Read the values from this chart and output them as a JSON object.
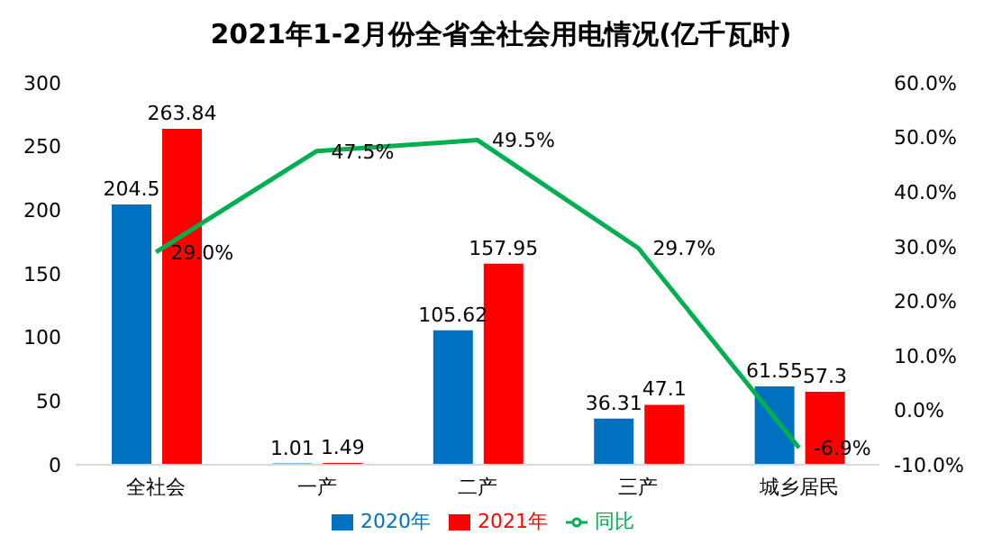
{
  "chart_data": {
    "type": "bar",
    "title": "2021年1-2月份全省全社会用电情况(亿千瓦时)",
    "categories": [
      "全社会",
      "一产",
      "二产",
      "三产",
      "城乡居民"
    ],
    "series": [
      {
        "name": "2020年",
        "color": "#0070c0",
        "values": [
          204.5,
          1.01,
          105.62,
          36.31,
          61.55
        ],
        "value_labels": [
          "204.5",
          "1.01",
          "105.62",
          "36.31",
          "61.55"
        ]
      },
      {
        "name": "2021年",
        "color": "#ff0000",
        "values": [
          263.84,
          1.49,
          157.95,
          47.1,
          57.3
        ],
        "value_labels": [
          "263.84",
          "1.49",
          "157.95",
          "47.1",
          "57.3"
        ]
      },
      {
        "name": "同比",
        "type": "line",
        "axis": "y2",
        "color": "#00b050",
        "marker": "none",
        "values": [
          29.0,
          47.5,
          49.5,
          29.7,
          -6.9
        ],
        "value_labels": [
          "29.0%",
          "47.5%",
          "49.5%",
          "29.7%",
          "-6.9%"
        ]
      }
    ],
    "ylim": [
      0,
      300
    ],
    "yticks": [
      0,
      50,
      100,
      150,
      200,
      250,
      300
    ],
    "y2lim": [
      -10,
      60
    ],
    "y2ticks": [
      {
        "value": -10,
        "label": "-10.0%"
      },
      {
        "value": 0,
        "label": "0.0%"
      },
      {
        "value": 10,
        "label": "10.0%"
      },
      {
        "value": 20,
        "label": "20.0%"
      },
      {
        "value": 30,
        "label": "30.0%"
      },
      {
        "value": 40,
        "label": "40.0%"
      },
      {
        "value": 50,
        "label": "50.0%"
      },
      {
        "value": 60,
        "label": "60.0%"
      }
    ],
    "grid": false,
    "legend": "bottom"
  }
}
